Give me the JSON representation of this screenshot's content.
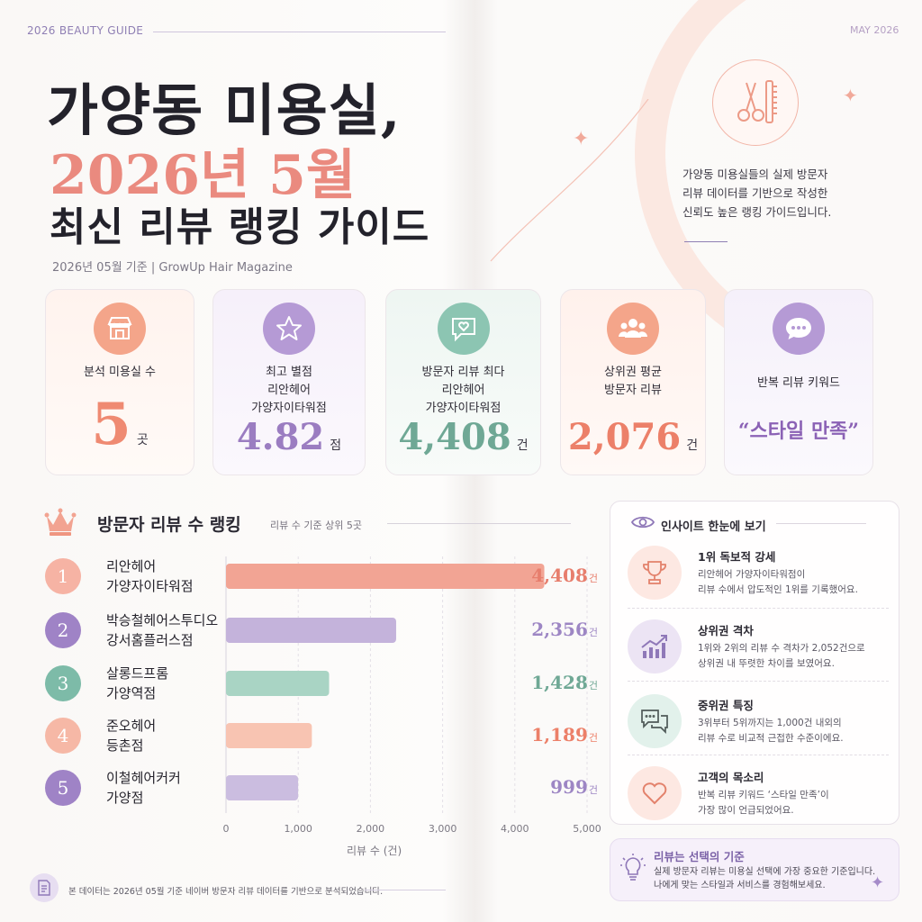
{
  "header": {
    "guide_label": "2026 BEAUTY GUIDE",
    "date_label": "MAY 2026",
    "title_line1": "가양동 미용실,",
    "title_line2": "2026년 5월",
    "title_line3": "최신 리뷰 랭킹 가이드",
    "meta": "2026년 05월 기준  |  GrowUp Hair Magazine",
    "intro": [
      "가양동 미용실들의 실제 방문자",
      "리뷰 데이터를 기반으로 작성한",
      "신뢰도 높은 랭킹 가이드입니다."
    ]
  },
  "cards": [
    {
      "label": [
        "분석 미용실 수"
      ],
      "value": "5",
      "unit": "곳",
      "color": "#ef8a72",
      "icon": "store-icon"
    },
    {
      "label": [
        "최고 별점",
        "리안헤어",
        "가양자이타워점"
      ],
      "value": "4.82",
      "unit": "점",
      "color": "#9b7dc1",
      "icon": "star-icon"
    },
    {
      "label": [
        "방문자 리뷰 최다",
        "리안헤어",
        "가양자이타워점"
      ],
      "value": "4,408",
      "unit": "건",
      "color": "#6fa895",
      "icon": "heart-chat-icon"
    },
    {
      "label": [
        "상위권 평균",
        "방문자 리뷰"
      ],
      "value": "2,076",
      "unit": "건",
      "color": "#ec8069",
      "icon": "users-icon"
    },
    {
      "label": [
        "반복 리뷰 키워드"
      ],
      "value": "“스타일 만족”",
      "unit": "",
      "color": "#8b62b5",
      "icon": "chat-dots-icon"
    }
  ],
  "ranking": {
    "title": "방문자 리뷰 수 랭킹",
    "subtitle": "리뷰 수 기준 상위 5곳"
  },
  "chart_data": {
    "type": "bar",
    "orientation": "horizontal",
    "categories": [
      "리안헤어 가양자이타워점",
      "박승철헤어스투디오 강서홈플러스점",
      "살롱드프롬 가양역점",
      "준오헤어 등촌점",
      "이철헤어커커 가양점"
    ],
    "name_lines": [
      [
        "리안헤어",
        "가양자이타워점"
      ],
      [
        "박승철헤어스투디오",
        "강서홈플러스점"
      ],
      [
        "살롱드프롬",
        "가양역점"
      ],
      [
        "준오헤어",
        "등촌점"
      ],
      [
        "이철헤어커커",
        "가양점"
      ]
    ],
    "ranks": [
      "1",
      "2",
      "3",
      "4",
      "5"
    ],
    "values": [
      4408,
      2356,
      1428,
      1189,
      999
    ],
    "value_labels": [
      "4,408",
      "2,356",
      "1,428",
      "1,189",
      "999"
    ],
    "unit": "건",
    "colors": [
      "#f2a494",
      "#c4b3db",
      "#a9d4c4",
      "#f8c4b2",
      "#cbbde0"
    ],
    "label_colors": [
      "#e77e6d",
      "#9d86c4",
      "#6fa895",
      "#ec8069",
      "#9d86c4"
    ],
    "badge_colors": [
      "#f6b3a4",
      "#9f83c6",
      "#7dbba8",
      "#f6b8a6",
      "#9f83c6"
    ],
    "xlim": [
      0,
      5000
    ],
    "xticks": [
      0,
      1000,
      2000,
      3000,
      4000,
      5000
    ],
    "xtick_labels": [
      "0",
      "1,000",
      "2,000",
      "3,000",
      "4,000",
      "5,000"
    ],
    "xlabel": "리뷰 수 (건)",
    "grid": true
  },
  "insights": {
    "title": "인사이트 한눈에 보기",
    "items": [
      {
        "title": "1위 독보적 강세",
        "lines": [
          "리안헤어 가양자이타워점이",
          "리뷰 수에서 압도적인 1위를 기록했어요."
        ],
        "icon": "trophy-icon",
        "bg": "#fde8e2"
      },
      {
        "title": "상위권 격차",
        "lines": [
          "1위와 2위의 리뷰 수 격차가 2,052건으로",
          "상위권 내 뚜렷한 차이를 보였어요."
        ],
        "icon": "growth-chart-icon",
        "bg": "#ece4f4"
      },
      {
        "title": "중위권 특징",
        "lines": [
          "3위부터 5위까지는 1,000건 내외의",
          "리뷰 수로 비교적 근접한 수준이에요."
        ],
        "icon": "chat-bubbles-icon",
        "bg": "#e2f1eb"
      },
      {
        "title": "고객의 목소리",
        "lines": [
          "반복 리뷰 키워드 ‘스타일 만족’이",
          "가장 많이 언급되었어요."
        ],
        "icon": "heart-icon",
        "bg": "#fde8e2"
      }
    ]
  },
  "criteria": {
    "title": "리뷰는 선택의 기준",
    "lines": [
      "실제 방문자 리뷰는 미용실 선택에 가장 중요한 기준입니다.",
      "나에게 맞는 스타일과 서비스를 경험해보세요."
    ]
  },
  "footer": {
    "note": "본 데이터는 2026년 05월 기준 네이버 방문자 리뷰 데이터를 기반으로 분석되었습니다."
  }
}
